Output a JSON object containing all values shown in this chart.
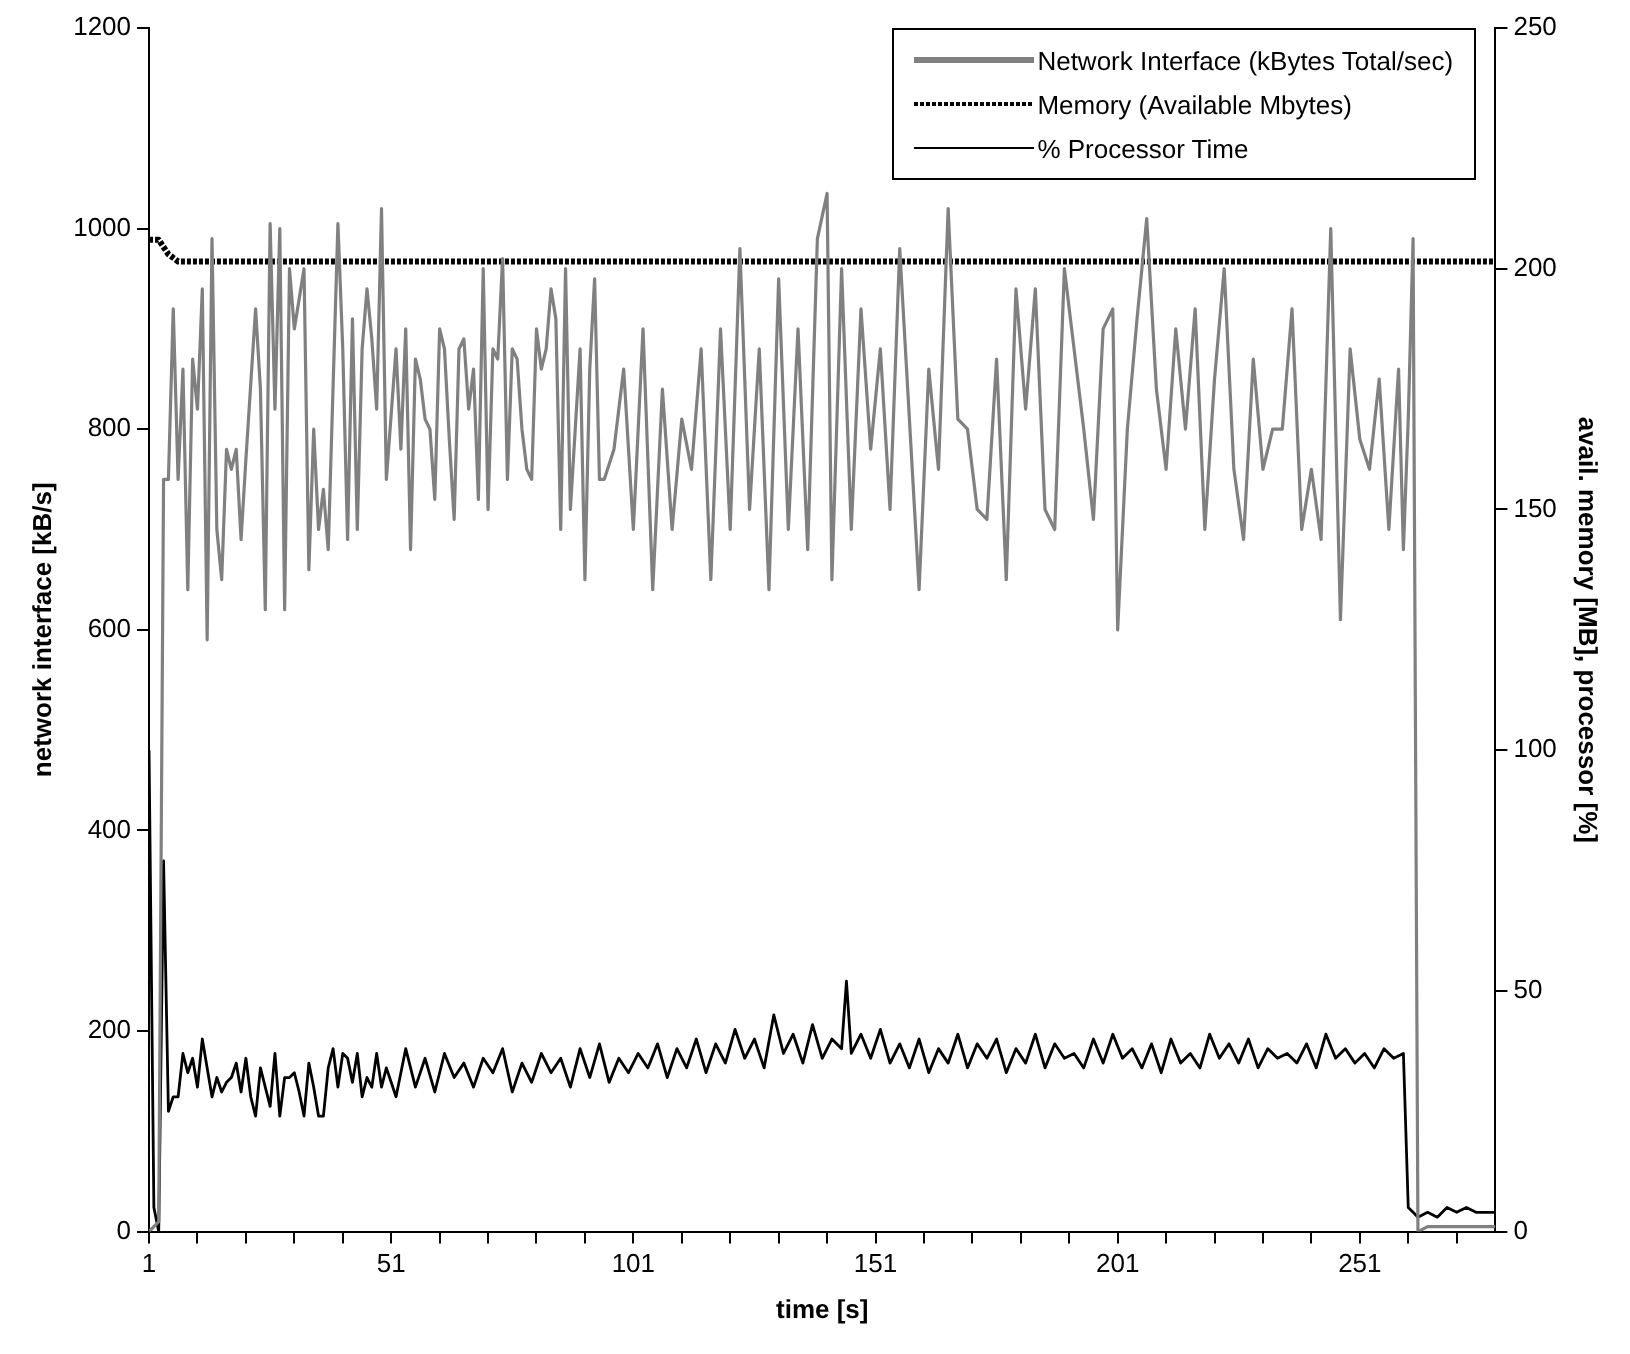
{
  "chart_data": {
    "type": "line",
    "xlabel": "time [s]",
    "ylabel": "network interface [kB/s]",
    "y2label": "avail. memory [MB], processor [%]",
    "xlim": [
      1,
      279
    ],
    "xticks": [
      1,
      {
        "value": 11,
        "label": null
      },
      {
        "value": 21,
        "label": null
      },
      {
        "value": 31,
        "label": null
      },
      {
        "value": 41,
        "label": null
      },
      51,
      {
        "value": 61,
        "label": null
      },
      {
        "value": 71,
        "label": null
      },
      {
        "value": 81,
        "label": null
      },
      {
        "value": 91,
        "label": null
      },
      101,
      {
        "value": 111,
        "label": null
      },
      {
        "value": 121,
        "label": null
      },
      {
        "value": 131,
        "label": null
      },
      {
        "value": 141,
        "label": null
      },
      151,
      {
        "value": 161,
        "label": null
      },
      {
        "value": 171,
        "label": null
      },
      {
        "value": 181,
        "label": null
      },
      {
        "value": 191,
        "label": null
      },
      201,
      {
        "value": 211,
        "label": null
      },
      {
        "value": 221,
        "label": null
      },
      {
        "value": 231,
        "label": null
      },
      {
        "value": 241,
        "label": null
      },
      251,
      {
        "value": 261,
        "label": null
      },
      {
        "value": 271,
        "label": null
      }
    ],
    "ylim": [
      0,
      1200
    ],
    "yticks": [
      0,
      200,
      400,
      600,
      800,
      1000,
      1200
    ],
    "y2lim": [
      0,
      250
    ],
    "y2ticks": [
      0,
      50,
      100,
      150,
      200,
      250
    ],
    "grid": false,
    "legend": "top right",
    "marker": "none",
    "series": [
      {
        "name": "Network Interface (kBytes Total/sec)",
        "color": "#808080",
        "line_style": "solid",
        "x": [
          1,
          3,
          4,
          5,
          6,
          7,
          8,
          9,
          10,
          11,
          12,
          13,
          14,
          15,
          16,
          17,
          18,
          19,
          20,
          21,
          23,
          24,
          25,
          26,
          27,
          28,
          29,
          30,
          31,
          33,
          34,
          35,
          36,
          37,
          38,
          40,
          41,
          42,
          43,
          44,
          45,
          46,
          47,
          48,
          49,
          50,
          52,
          53,
          54,
          55,
          56,
          57,
          58,
          59,
          60,
          61,
          62,
          63,
          64,
          65,
          66,
          67,
          68,
          69,
          70,
          71,
          72,
          73,
          74,
          75,
          76,
          77,
          78,
          79,
          80,
          81,
          82,
          83,
          84,
          85,
          86,
          87,
          88,
          90,
          91,
          92,
          93,
          94,
          95,
          97,
          99,
          101,
          103,
          105,
          107,
          109,
          111,
          113,
          115,
          117,
          119,
          121,
          123,
          125,
          127,
          129,
          131,
          133,
          135,
          137,
          139,
          141,
          142,
          144,
          146,
          148,
          150,
          152,
          154,
          156,
          158,
          160,
          162,
          164,
          166,
          168,
          170,
          172,
          174,
          176,
          178,
          180,
          182,
          184,
          186,
          188,
          190,
          192,
          194,
          196,
          198,
          200,
          201,
          203,
          205,
          207,
          209,
          211,
          213,
          215,
          217,
          219,
          221,
          223,
          225,
          227,
          229,
          231,
          233,
          235,
          237,
          239,
          241,
          243,
          245,
          247,
          249,
          251,
          253,
          255,
          257,
          259,
          260,
          261,
          262,
          263,
          265,
          270,
          279
        ],
        "values": [
          0,
          10,
          750,
          750,
          920,
          750,
          860,
          640,
          870,
          820,
          940,
          590,
          990,
          700,
          650,
          780,
          760,
          780,
          690,
          770,
          920,
          840,
          620,
          1005,
          820,
          1000,
          620,
          960,
          900,
          960,
          660,
          800,
          700,
          740,
          680,
          1005,
          880,
          690,
          910,
          700,
          880,
          940,
          890,
          820,
          1020,
          750,
          880,
          780,
          900,
          680,
          870,
          850,
          810,
          800,
          730,
          900,
          880,
          790,
          710,
          880,
          890,
          820,
          860,
          730,
          960,
          720,
          880,
          870,
          970,
          750,
          880,
          870,
          800,
          760,
          750,
          900,
          860,
          880,
          940,
          910,
          700,
          960,
          720,
          880,
          650,
          860,
          950,
          750,
          750,
          780,
          860,
          700,
          900,
          640,
          840,
          700,
          810,
          760,
          880,
          650,
          900,
          700,
          980,
          720,
          880,
          640,
          950,
          700,
          900,
          680,
          990,
          1035,
          650,
          960,
          700,
          920,
          780,
          880,
          720,
          980,
          810,
          640,
          860,
          760,
          1020,
          810,
          800,
          720,
          710,
          870,
          650,
          940,
          820,
          940,
          720,
          700,
          960,
          880,
          800,
          710,
          900,
          920,
          600,
          800,
          910,
          1010,
          840,
          760,
          900,
          800,
          920,
          700,
          850,
          960,
          760,
          690,
          870,
          760,
          800,
          800,
          920,
          700,
          760,
          690,
          1000,
          610,
          880,
          790,
          760,
          850,
          700,
          860,
          680,
          810,
          990,
          0,
          5,
          5,
          5
        ]
      },
      {
        "name": "Memory (Available Mbytes)",
        "color": "#000000",
        "line_style": "dotted",
        "axis": "y2",
        "x": [
          1,
          3,
          5,
          7,
          279
        ],
        "values": [
          206,
          206,
          203,
          201.5,
          201.5
        ]
      },
      {
        "name": "% Processor Time",
        "color": "#000000",
        "line_style": "solid",
        "axis": "y2",
        "x": [
          1,
          2,
          3,
          4,
          5,
          6,
          7,
          8,
          9,
          10,
          11,
          12,
          13,
          14,
          15,
          16,
          17,
          18,
          19,
          20,
          21,
          22,
          23,
          24,
          25,
          26,
          27,
          28,
          29,
          30,
          31,
          32,
          33,
          34,
          35,
          36,
          37,
          38,
          39,
          40,
          41,
          42,
          43,
          44,
          45,
          46,
          47,
          48,
          49,
          50,
          52,
          54,
          56,
          58,
          60,
          62,
          64,
          66,
          68,
          70,
          72,
          74,
          76,
          78,
          80,
          82,
          84,
          86,
          88,
          90,
          92,
          94,
          96,
          98,
          100,
          102,
          104,
          106,
          108,
          110,
          112,
          114,
          116,
          118,
          120,
          122,
          124,
          126,
          128,
          130,
          132,
          134,
          136,
          138,
          140,
          142,
          144,
          145,
          146,
          148,
          150,
          152,
          154,
          156,
          158,
          160,
          162,
          164,
          166,
          168,
          170,
          172,
          174,
          176,
          178,
          180,
          182,
          184,
          186,
          188,
          190,
          192,
          194,
          196,
          198,
          200,
          202,
          204,
          206,
          208,
          210,
          212,
          214,
          216,
          218,
          220,
          222,
          224,
          226,
          228,
          230,
          232,
          234,
          236,
          238,
          240,
          242,
          244,
          246,
          248,
          250,
          252,
          254,
          256,
          258,
          260,
          261,
          262,
          263,
          265,
          267,
          269,
          271,
          273,
          275,
          277,
          279
        ],
        "values": [
          100,
          5,
          0,
          77,
          25,
          28,
          28,
          37,
          33,
          36,
          30,
          40,
          34,
          28,
          32,
          29,
          31,
          32,
          35,
          29,
          36,
          28,
          24,
          34,
          30,
          26,
          37,
          24,
          32,
          32,
          33,
          29,
          24,
          35,
          30,
          24,
          24,
          34,
          38,
          30,
          37,
          36,
          31,
          37,
          28,
          32,
          30,
          37,
          30,
          34,
          28,
          38,
          30,
          36,
          29,
          37,
          32,
          35,
          30,
          36,
          33,
          38,
          29,
          35,
          31,
          37,
          33,
          36,
          30,
          38,
          32,
          39,
          31,
          36,
          33,
          37,
          34,
          39,
          32,
          38,
          34,
          40,
          33,
          39,
          35,
          42,
          36,
          40,
          34,
          45,
          37,
          41,
          35,
          43,
          36,
          40,
          38,
          52,
          37,
          41,
          36,
          42,
          35,
          39,
          34,
          40,
          33,
          38,
          35,
          41,
          34,
          39,
          36,
          40,
          33,
          38,
          35,
          41,
          34,
          39,
          36,
          37,
          34,
          40,
          35,
          41,
          36,
          38,
          34,
          39,
          33,
          40,
          35,
          37,
          34,
          41,
          36,
          39,
          35,
          40,
          34,
          38,
          36,
          37,
          35,
          39,
          34,
          41,
          36,
          38,
          35,
          37,
          34,
          38,
          36,
          37,
          5,
          4,
          3,
          4,
          3,
          5,
          4,
          5,
          4,
          4,
          4
        ]
      }
    ]
  }
}
